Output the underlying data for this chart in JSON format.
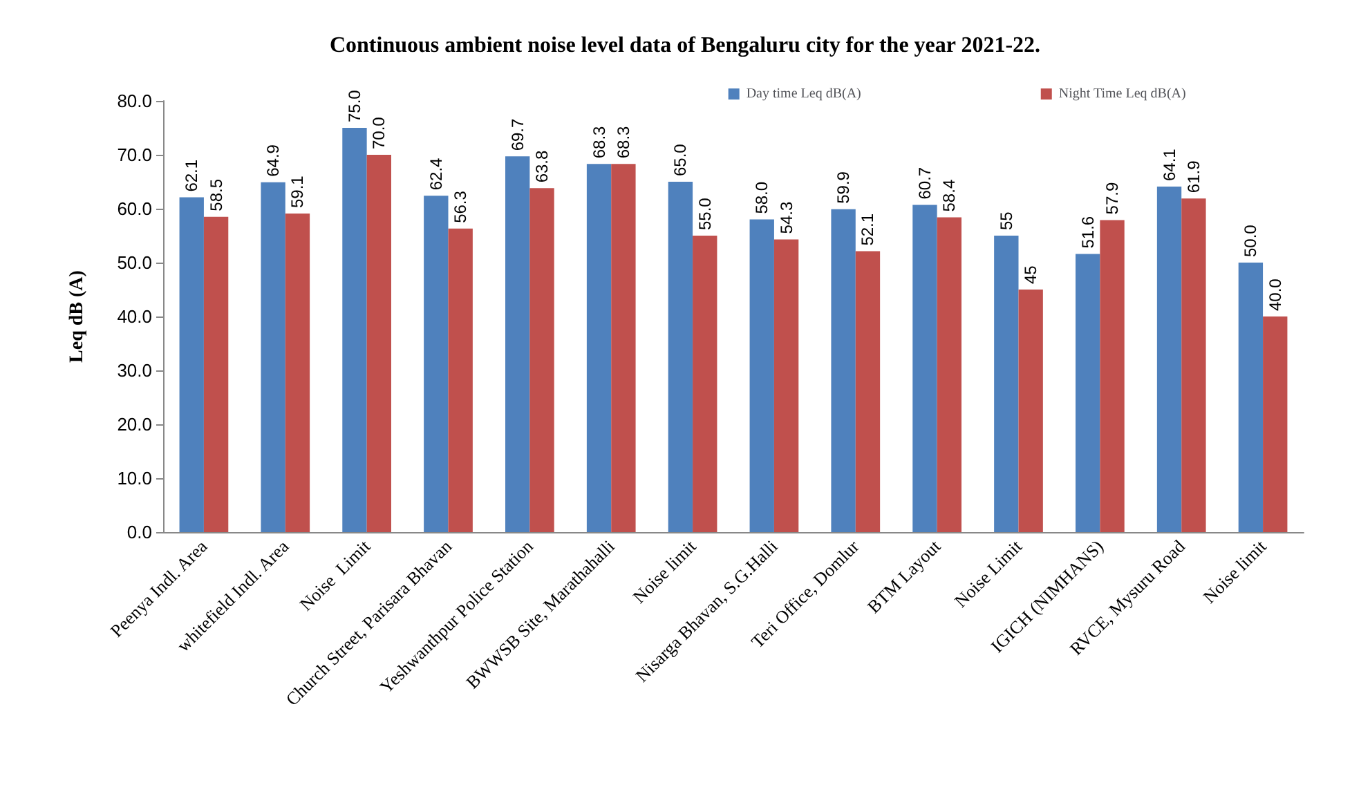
{
  "chart_data": {
    "type": "bar",
    "title": "Continuous ambient noise level data of Bengaluru city for the year 2021-22.",
    "ylabel": "Leq dB (A)",
    "categories": [
      "Peenya Indl. Area",
      "whitefield Indl. Area",
      "Noise  Limit",
      "Church Street, Parisara Bhavan",
      "Yeshwanthpur Police Station",
      "BWWSB Site, Marathahalli",
      "Noise limit",
      "Nisarga Bhavan, S.G.Halli",
      "Teri Office, Domlur",
      "BTM Layout",
      "Noise Limit",
      "IGICH (NIMHANS)",
      "RVCE, Mysuru Road",
      "Noise limit"
    ],
    "series": [
      {
        "name": "Day time Leq dB(A)",
        "color": "#4f81bd",
        "values": [
          62.1,
          64.9,
          75.0,
          62.4,
          69.7,
          68.3,
          65.0,
          58.0,
          59.9,
          60.7,
          55,
          51.6,
          64.1,
          50.0
        ],
        "value_labels": [
          "62.1",
          "64.9",
          "75.0",
          "62.4",
          "69.7",
          "68.3",
          "65.0",
          "58.0",
          "59.9",
          "60.7",
          "55",
          "51.6",
          "64.1",
          "50.0"
        ]
      },
      {
        "name": "Night Time Leq dB(A)",
        "color": "#c0504d",
        "values": [
          58.5,
          59.1,
          70.0,
          56.3,
          63.8,
          68.3,
          55.0,
          54.3,
          52.1,
          58.4,
          45,
          57.9,
          61.9,
          40.0
        ],
        "value_labels": [
          "58.5",
          "59.1",
          "70.0",
          "56.3",
          "63.8",
          "68.3",
          "55.0",
          "54.3",
          "52.1",
          "58.4",
          "45",
          "57.9",
          "61.9",
          "40.0"
        ]
      }
    ],
    "ylim": [
      0,
      80
    ],
    "yticks": [
      {
        "value": 0,
        "label": "0.0"
      },
      {
        "value": 10,
        "label": "10.0"
      },
      {
        "value": 20,
        "label": "20.0"
      },
      {
        "value": 30,
        "label": "30.0"
      },
      {
        "value": 40,
        "label": "40.0"
      },
      {
        "value": 50,
        "label": "50.0"
      },
      {
        "value": 60,
        "label": "60.0"
      },
      {
        "value": 70,
        "label": "70.0"
      },
      {
        "value": 80,
        "label": "80.0"
      }
    ],
    "grid": false,
    "legend": "top right"
  }
}
